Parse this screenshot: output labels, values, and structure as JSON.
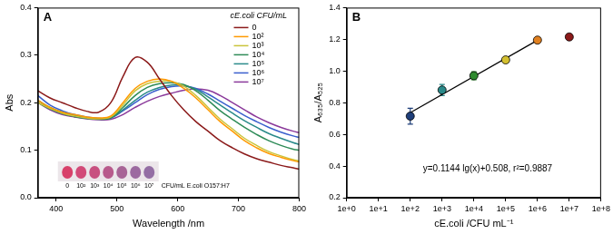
{
  "chart_data": [
    {
      "type": "line",
      "title": "A",
      "xlabel": "Wavelength /nm",
      "ylabel": "Abs",
      "legend": "upper right",
      "legend_title": "cE.coli CFU/mL",
      "xlim": [
        370,
        800
      ],
      "xticks": [
        400,
        500,
        600,
        700,
        800
      ],
      "ylim": [
        0,
        0.4
      ],
      "yticks": [
        {
          "value": 0,
          "label": "0.0"
        },
        0.1,
        0.2,
        0.3,
        0.4
      ],
      "grid": false,
      "x": [
        370,
        390,
        410,
        430,
        450,
        470,
        490,
        510,
        530,
        550,
        570,
        590,
        610,
        630,
        650,
        670,
        690,
        710,
        730,
        750,
        770,
        790,
        800
      ],
      "series": [
        {
          "name": "0",
          "color": "#8b1a1a",
          "values": [
            0.225,
            0.21,
            0.2,
            0.19,
            0.182,
            0.18,
            0.2,
            0.255,
            0.295,
            0.285,
            0.25,
            0.215,
            0.185,
            0.16,
            0.14,
            0.12,
            0.105,
            0.092,
            0.082,
            0.075,
            0.068,
            0.063,
            0.06
          ]
        },
        {
          "name": "10²",
          "color": "#ff9900",
          "values": [
            0.205,
            0.19,
            0.18,
            0.175,
            0.17,
            0.168,
            0.172,
            0.2,
            0.23,
            0.245,
            0.25,
            0.245,
            0.23,
            0.21,
            0.185,
            0.16,
            0.14,
            0.12,
            0.105,
            0.093,
            0.085,
            0.078,
            0.075
          ]
        },
        {
          "name": "10³",
          "color": "#c9c43a",
          "values": [
            0.2,
            0.188,
            0.178,
            0.172,
            0.168,
            0.166,
            0.17,
            0.195,
            0.225,
            0.24,
            0.245,
            0.245,
            0.235,
            0.215,
            0.19,
            0.165,
            0.145,
            0.125,
            0.11,
            0.097,
            0.088,
            0.08,
            0.077
          ]
        },
        {
          "name": "10⁴",
          "color": "#2e8b57",
          "values": [
            0.2,
            0.187,
            0.177,
            0.171,
            0.167,
            0.165,
            0.168,
            0.19,
            0.215,
            0.232,
            0.24,
            0.242,
            0.238,
            0.225,
            0.205,
            0.183,
            0.165,
            0.148,
            0.133,
            0.12,
            0.11,
            0.102,
            0.1
          ]
        },
        {
          "name": "10⁵",
          "color": "#2a8a8a",
          "values": [
            0.205,
            0.19,
            0.18,
            0.173,
            0.168,
            0.166,
            0.168,
            0.185,
            0.205,
            0.222,
            0.232,
            0.237,
            0.236,
            0.228,
            0.212,
            0.195,
            0.178,
            0.162,
            0.148,
            0.135,
            0.125,
            0.116,
            0.112
          ]
        },
        {
          "name": "10⁶",
          "color": "#3a5fcd",
          "values": [
            0.215,
            0.195,
            0.183,
            0.175,
            0.17,
            0.167,
            0.168,
            0.183,
            0.2,
            0.217,
            0.228,
            0.234,
            0.235,
            0.23,
            0.218,
            0.203,
            0.188,
            0.173,
            0.16,
            0.148,
            0.138,
            0.13,
            0.127
          ]
        },
        {
          "name": "10⁷",
          "color": "#8b3a9b",
          "values": [
            0.2,
            0.185,
            0.175,
            0.17,
            0.166,
            0.164,
            0.165,
            0.175,
            0.19,
            0.203,
            0.213,
            0.22,
            0.226,
            0.229,
            0.226,
            0.215,
            0.2,
            0.185,
            0.17,
            0.158,
            0.148,
            0.14,
            0.137
          ]
        }
      ],
      "inset": {
        "labels": [
          "0",
          "10²",
          "10³",
          "10⁴",
          "10⁵",
          "10⁶",
          "10⁷"
        ],
        "caption": "CFU/mL E.coli O157:H7"
      }
    },
    {
      "type": "scatter",
      "title": "B",
      "xlabel": "cE.coli /CFU mL⁻¹",
      "ylabel": "A₆₃₅/A₅₂₅",
      "log": "x",
      "grid": false,
      "marker": "circle",
      "xlim": [
        1,
        100000000
      ],
      "xticks": [
        {
          "value": 1,
          "label": "1e+0"
        },
        {
          "value": 10,
          "label": "1e+1"
        },
        {
          "value": 100,
          "label": "1e+2"
        },
        {
          "value": 1000,
          "label": "1e+3"
        },
        {
          "value": 10000,
          "label": "1e+4"
        },
        {
          "value": 100000,
          "label": "1e+5"
        },
        {
          "value": 1000000,
          "label": "1e+6"
        },
        {
          "value": 10000000,
          "label": "1e+7"
        },
        {
          "value": 100000000,
          "label": "1e+8"
        }
      ],
      "ylim": [
        0.2,
        1.4
      ],
      "yticks": [
        0.2,
        0.4,
        0.6,
        0.8,
        {
          "value": 1,
          "label": "1.0"
        },
        1.2,
        1.4
      ],
      "x": [
        100,
        1000,
        10000,
        100000,
        1000000,
        10000000
      ],
      "values": [
        0.715,
        0.88,
        0.97,
        1.07,
        1.195,
        1.215
      ],
      "errors": [
        0.05,
        0.035,
        0.025,
        0.015,
        0.01,
        0.015
      ],
      "colors": [
        "#1f3f7a",
        "#2a8a8a",
        "#2e8b2e",
        "#d4c030",
        "#e08020",
        "#8b1a1a"
      ],
      "fit": {
        "x": [
          100,
          1000000
        ],
        "values": [
          0.737,
          1.194
        ]
      },
      "annotation": "y=0.1144 lg(x)+0.508, r²=0.9887"
    }
  ]
}
